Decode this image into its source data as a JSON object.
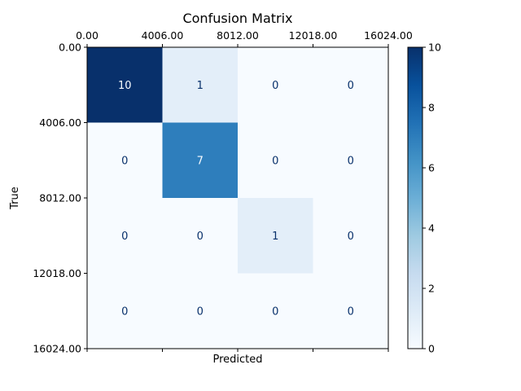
{
  "chart_data": {
    "type": "heatmap",
    "title": "Confusion Matrix",
    "xlabel": "Predicted",
    "ylabel": "True",
    "top_tick_labels": [
      "0.00",
      "4006.00",
      "8012.00",
      "12018.00",
      "16024.00"
    ],
    "left_tick_labels": [
      "0.00",
      "4006.00",
      "8012.00",
      "12018.00",
      "16024.00"
    ],
    "matrix": [
      [
        10,
        1,
        0,
        0
      ],
      [
        0,
        7,
        0,
        0
      ],
      [
        0,
        0,
        1,
        0
      ],
      [
        0,
        0,
        0,
        0
      ]
    ],
    "colorbar": {
      "min": 0,
      "max": 10,
      "ticks": [
        "0",
        "2",
        "4",
        "6",
        "8",
        "10"
      ],
      "colormap": "Blues"
    },
    "colors": {
      "low": "#f7fbff",
      "high": "#08306b",
      "text_dark": "#08306b",
      "text_light": "#f7fbff"
    }
  }
}
